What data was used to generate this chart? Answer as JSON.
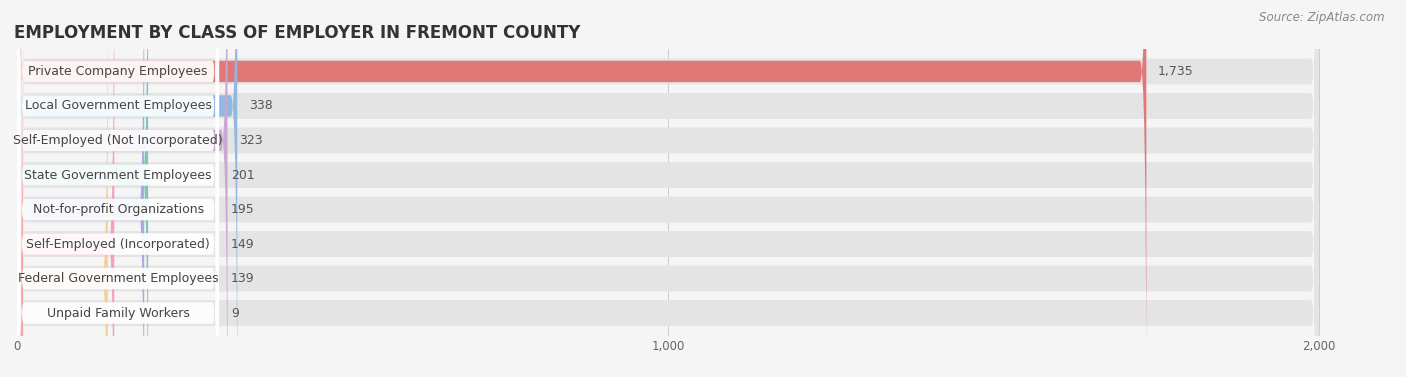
{
  "title": "EMPLOYMENT BY CLASS OF EMPLOYER IN FREMONT COUNTY",
  "source": "Source: ZipAtlas.com",
  "categories": [
    "Private Company Employees",
    "Local Government Employees",
    "Self-Employed (Not Incorporated)",
    "State Government Employees",
    "Not-for-profit Organizations",
    "Self-Employed (Incorporated)",
    "Federal Government Employees",
    "Unpaid Family Workers"
  ],
  "values": [
    1735,
    338,
    323,
    201,
    195,
    149,
    139,
    9
  ],
  "bar_colors": [
    "#E07878",
    "#90B8E0",
    "#C8A8D0",
    "#78C8BC",
    "#A8ACDC",
    "#F4A0BC",
    "#F8CC98",
    "#F4A8A0"
  ],
  "background_color": "#f5f5f5",
  "bar_bg_color": "#e4e4e4",
  "label_bg_color": "#ffffff",
  "xlim_max": 2000,
  "xticks": [
    0,
    1000,
    2000
  ],
  "title_fontsize": 12,
  "label_fontsize": 9,
  "value_fontsize": 9,
  "source_fontsize": 8.5
}
